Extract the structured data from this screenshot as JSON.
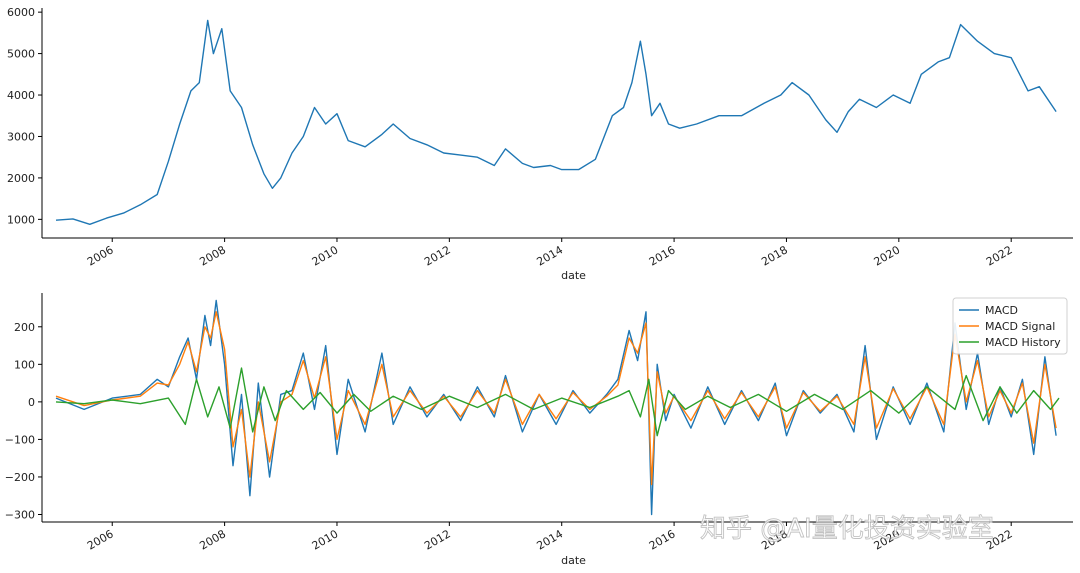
{
  "watermark": "知乎 @AI量化投资实验室",
  "chart_data": [
    {
      "type": "line",
      "xlabel": "date",
      "ylabel": "",
      "xlim": [
        2004.75,
        2023.1
      ],
      "ylim": [
        550,
        6100
      ],
      "yticks": [
        1000,
        2000,
        3000,
        4000,
        5000,
        6000
      ],
      "ytick_labels": [
        "1000",
        "2000",
        "3000",
        "4000",
        "5000",
        "6000"
      ],
      "xticks": [
        2006,
        2008,
        2010,
        2012,
        2014,
        2016,
        2018,
        2020,
        2022
      ],
      "xtick_labels": [
        "2006",
        "2008",
        "2010",
        "2012",
        "2014",
        "2016",
        "2018",
        "2020",
        "2022"
      ],
      "grid": false,
      "series": [
        {
          "color": "#1f77b4",
          "x": [
            2005.0,
            2005.3,
            2005.6,
            2005.9,
            2006.2,
            2006.5,
            2006.8,
            2007.0,
            2007.2,
            2007.4,
            2007.55,
            2007.7,
            2007.8,
            2007.95,
            2008.1,
            2008.3,
            2008.5,
            2008.7,
            2008.85,
            2009.0,
            2009.2,
            2009.4,
            2009.6,
            2009.8,
            2010.0,
            2010.2,
            2010.5,
            2010.8,
            2011.0,
            2011.3,
            2011.6,
            2011.9,
            2012.2,
            2012.5,
            2012.8,
            2013.0,
            2013.3,
            2013.5,
            2013.8,
            2014.0,
            2014.3,
            2014.6,
            2014.9,
            2015.1,
            2015.25,
            2015.4,
            2015.5,
            2015.6,
            2015.75,
            2015.9,
            2016.1,
            2016.4,
            2016.8,
            2017.2,
            2017.6,
            2017.9,
            2018.1,
            2018.4,
            2018.7,
            2018.9,
            2019.1,
            2019.3,
            2019.6,
            2019.9,
            2020.2,
            2020.4,
            2020.7,
            2020.9,
            2021.1,
            2021.4,
            2021.7,
            2022.0,
            2022.3,
            2022.5,
            2022.8
          ],
          "y": [
            980,
            1010,
            880,
            1030,
            1150,
            1350,
            1600,
            2400,
            3300,
            4100,
            4300,
            5800,
            5000,
            5600,
            4100,
            3700,
            2800,
            2100,
            1750,
            2000,
            2600,
            3000,
            3700,
            3300,
            3550,
            2900,
            2750,
            3050,
            3300,
            2950,
            2800,
            2600,
            2550,
            2500,
            2300,
            2700,
            2350,
            2250,
            2300,
            2200,
            2200,
            2450,
            3500,
            3700,
            4300,
            5300,
            4500,
            3500,
            3800,
            3300,
            3200,
            3300,
            3500,
            3500,
            3800,
            4000,
            4300,
            4000,
            3400,
            3100,
            3600,
            3900,
            3700,
            4000,
            3800,
            4500,
            4800,
            4900,
            5700,
            5300,
            5000,
            4900,
            4100,
            4200,
            3600
          ]
        }
      ]
    },
    {
      "type": "line",
      "xlabel": "date",
      "ylabel": "",
      "xlim": [
        2004.75,
        2023.1
      ],
      "ylim": [
        -320,
        290
      ],
      "yticks": [
        -300,
        -200,
        -100,
        0,
        100,
        200
      ],
      "ytick_labels": [
        "−300",
        "−200",
        "−100",
        "0",
        "100",
        "200"
      ],
      "xticks": [
        2006,
        2008,
        2010,
        2012,
        2014,
        2016,
        2018,
        2020,
        2022
      ],
      "xtick_labels": [
        "2006",
        "2008",
        "2010",
        "2012",
        "2014",
        "2016",
        "2018",
        "2020",
        "2022"
      ],
      "grid": false,
      "legend": {
        "position": "top-right",
        "entries": [
          "MACD",
          "MACD Signal",
          "MACD History"
        ]
      },
      "series": [
        {
          "name": "MACD",
          "color": "#1f77b4",
          "x": [
            2005.0,
            2005.5,
            2006.0,
            2006.5,
            2006.8,
            2007.0,
            2007.2,
            2007.35,
            2007.5,
            2007.65,
            2007.75,
            2007.85,
            2008.0,
            2008.15,
            2008.3,
            2008.45,
            2008.6,
            2008.8,
            2009.0,
            2009.2,
            2009.4,
            2009.6,
            2009.8,
            2010.0,
            2010.2,
            2010.5,
            2010.8,
            2011.0,
            2011.3,
            2011.6,
            2011.9,
            2012.2,
            2012.5,
            2012.8,
            2013.0,
            2013.3,
            2013.6,
            2013.9,
            2014.2,
            2014.5,
            2014.8,
            2015.0,
            2015.2,
            2015.35,
            2015.5,
            2015.6,
            2015.7,
            2015.85,
            2016.0,
            2016.3,
            2016.6,
            2016.9,
            2017.2,
            2017.5,
            2017.8,
            2018.0,
            2018.3,
            2018.6,
            2018.9,
            2019.2,
            2019.4,
            2019.6,
            2019.9,
            2020.2,
            2020.5,
            2020.8,
            2021.0,
            2021.2,
            2021.4,
            2021.6,
            2021.8,
            2022.0,
            2022.2,
            2022.4,
            2022.6,
            2022.8
          ],
          "y": [
            10,
            -20,
            10,
            20,
            60,
            40,
            120,
            170,
            60,
            230,
            150,
            270,
            100,
            -170,
            20,
            -250,
            50,
            -200,
            20,
            30,
            130,
            -20,
            150,
            -140,
            60,
            -80,
            130,
            -60,
            40,
            -40,
            20,
            -50,
            40,
            -40,
            70,
            -80,
            20,
            -60,
            30,
            -30,
            20,
            60,
            190,
            110,
            240,
            -300,
            100,
            -50,
            20,
            -70,
            40,
            -60,
            30,
            -50,
            50,
            -90,
            30,
            -30,
            20,
            -80,
            150,
            -100,
            40,
            -60,
            50,
            -80,
            210,
            -20,
            130,
            -60,
            40,
            -40,
            60,
            -140,
            120,
            -90
          ]
        },
        {
          "name": "MACD Signal",
          "color": "#ff7f0e",
          "x": [
            2005.0,
            2005.5,
            2006.0,
            2006.5,
            2006.8,
            2007.0,
            2007.2,
            2007.35,
            2007.5,
            2007.65,
            2007.75,
            2007.85,
            2008.0,
            2008.15,
            2008.3,
            2008.45,
            2008.6,
            2008.8,
            2009.0,
            2009.2,
            2009.4,
            2009.6,
            2009.8,
            2010.0,
            2010.2,
            2010.5,
            2010.8,
            2011.0,
            2011.3,
            2011.6,
            2011.9,
            2012.2,
            2012.5,
            2012.8,
            2013.0,
            2013.3,
            2013.6,
            2013.9,
            2014.2,
            2014.5,
            2014.8,
            2015.0,
            2015.2,
            2015.35,
            2015.5,
            2015.6,
            2015.7,
            2015.85,
            2016.0,
            2016.3,
            2016.6,
            2016.9,
            2017.2,
            2017.5,
            2017.8,
            2018.0,
            2018.3,
            2018.6,
            2018.9,
            2019.2,
            2019.4,
            2019.6,
            2019.9,
            2020.2,
            2020.5,
            2020.8,
            2021.0,
            2021.2,
            2021.4,
            2021.6,
            2021.8,
            2022.0,
            2022.2,
            2022.4,
            2022.6,
            2022.8
          ],
          "y": [
            15,
            -10,
            5,
            15,
            50,
            45,
            100,
            160,
            80,
            200,
            170,
            240,
            140,
            -120,
            -20,
            -200,
            0,
            -160,
            0,
            20,
            110,
            10,
            120,
            -100,
            30,
            -60,
            100,
            -40,
            30,
            -30,
            15,
            -40,
            30,
            -30,
            60,
            -60,
            20,
            -45,
            25,
            -20,
            15,
            45,
            170,
            130,
            210,
            -220,
            80,
            -30,
            15,
            -50,
            30,
            -45,
            25,
            -40,
            40,
            -70,
            25,
            -25,
            15,
            -60,
            120,
            -70,
            35,
            -45,
            40,
            -60,
            180,
            0,
            110,
            -40,
            30,
            -30,
            50,
            -110,
            100,
            -70
          ]
        },
        {
          "name": "MACD History",
          "color": "#2ca02c",
          "x": [
            2005.0,
            2005.5,
            2006.0,
            2006.5,
            2007.0,
            2007.3,
            2007.5,
            2007.7,
            2007.9,
            2008.1,
            2008.3,
            2008.5,
            2008.7,
            2008.9,
            2009.1,
            2009.4,
            2009.7,
            2010.0,
            2010.3,
            2010.6,
            2011.0,
            2011.5,
            2012.0,
            2012.5,
            2013.0,
            2013.5,
            2014.0,
            2014.5,
            2015.0,
            2015.2,
            2015.4,
            2015.55,
            2015.7,
            2015.9,
            2016.2,
            2016.6,
            2017.0,
            2017.5,
            2018.0,
            2018.5,
            2019.0,
            2019.5,
            2020.0,
            2020.5,
            2021.0,
            2021.2,
            2021.5,
            2021.8,
            2022.1,
            2022.4,
            2022.7,
            2022.85
          ],
          "y": [
            0,
            -5,
            5,
            -5,
            10,
            -60,
            60,
            -40,
            40,
            -70,
            90,
            -80,
            40,
            -50,
            30,
            -20,
            25,
            -30,
            20,
            -25,
            15,
            -20,
            15,
            -15,
            20,
            -20,
            10,
            -15,
            15,
            30,
            -40,
            60,
            -90,
            30,
            -20,
            15,
            -15,
            20,
            -25,
            20,
            -20,
            30,
            -30,
            40,
            -20,
            70,
            -50,
            40,
            -30,
            30,
            -20,
            10
          ]
        }
      ]
    }
  ]
}
